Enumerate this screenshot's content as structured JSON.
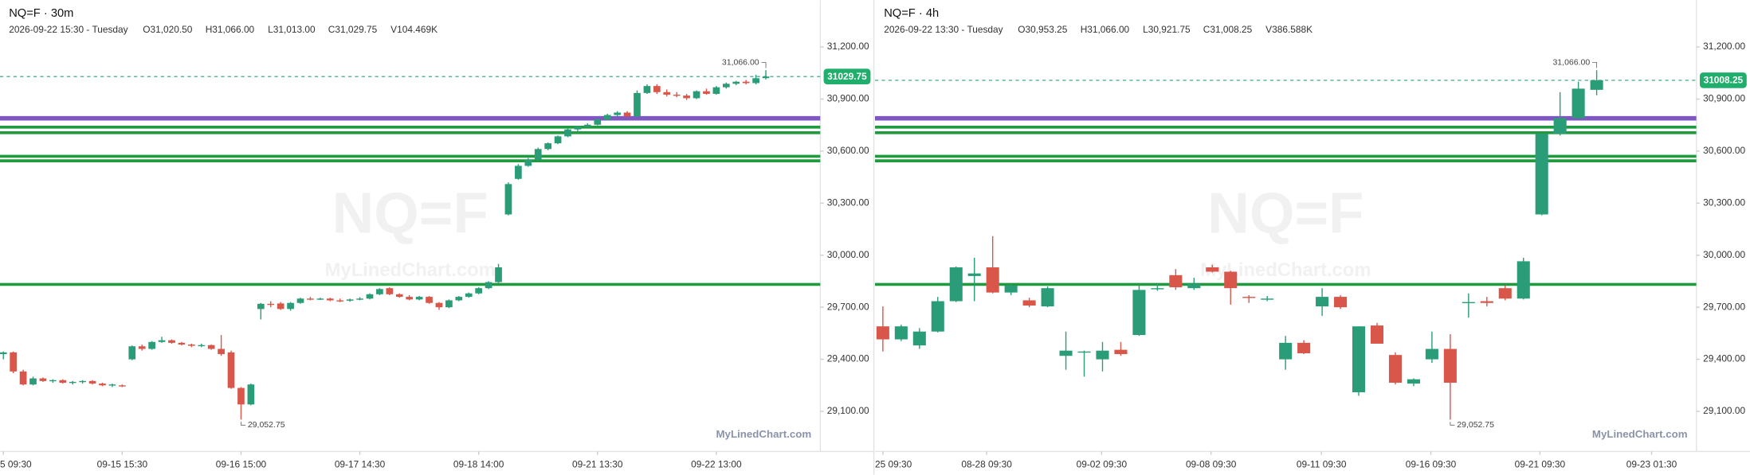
{
  "chart_data": [
    {
      "type": "candlestick",
      "title": "NQ=F · 30m",
      "info": [
        "2026-09-22 15:30 - Tuesday",
        "O31,020.50",
        "H31,066.00",
        "L31,013.00",
        "C31,029.75",
        "V104.469K"
      ],
      "watermark": "NQ=F",
      "watermark_sub": "MyLinedChart.com",
      "brand": "MyLinedChart.com",
      "up_color": "#2a9d78",
      "down_color": "#d9574a",
      "open": [
        29430,
        29440,
        29330,
        29255,
        29290,
        29275,
        29280,
        29265,
        29270,
        29275,
        29260,
        29250,
        29250,
        29400,
        29475,
        29460,
        29500,
        29510,
        29495,
        29485,
        29478,
        29482,
        29460,
        29440,
        29235,
        29140,
        29690,
        29720,
        29722,
        29690,
        29725,
        29750,
        29748,
        29750,
        29740,
        29738,
        29745,
        29750,
        29775,
        29810,
        29775,
        29760,
        29745,
        29760,
        29725,
        29700,
        29740,
        29760,
        29780,
        29810,
        29845,
        30235,
        30440,
        30515,
        30550,
        30612,
        30645,
        30685,
        30725,
        30740,
        30752,
        30782,
        30808,
        30822,
        30800,
        30935,
        30975,
        30940,
        30925,
        30920,
        30905,
        30945,
        30930,
        30968,
        30988,
        31000,
        30992,
        31020.5
      ],
      "high": [
        29445,
        29445,
        29340,
        29300,
        29295,
        29285,
        29285,
        29275,
        29280,
        29280,
        29265,
        29260,
        29255,
        29480,
        29485,
        29505,
        29530,
        29515,
        29500,
        29490,
        29490,
        29485,
        29540,
        29450,
        29240,
        29260,
        29725,
        29735,
        29730,
        29730,
        29755,
        29760,
        29755,
        29755,
        29750,
        29750,
        29758,
        29780,
        29810,
        29815,
        29780,
        29770,
        29765,
        29765,
        29730,
        29745,
        29765,
        29785,
        29815,
        29850,
        29950,
        30420,
        30525,
        30560,
        30620,
        30650,
        30690,
        30730,
        30745,
        30760,
        30790,
        30815,
        30830,
        30830,
        30950,
        30985,
        30985,
        30955,
        30940,
        30930,
        30950,
        30960,
        30975,
        30995,
        31005,
        31010,
        31040,
        31066
      ],
      "low": [
        29400,
        29320,
        29250,
        29250,
        29270,
        29265,
        29260,
        29255,
        29260,
        29255,
        29245,
        29240,
        29240,
        29395,
        29450,
        29455,
        29495,
        29490,
        29480,
        29470,
        29470,
        29455,
        29420,
        29230,
        29052.75,
        29135,
        29630,
        29700,
        29685,
        29680,
        29720,
        29740,
        29742,
        29735,
        29730,
        29732,
        29740,
        29745,
        29770,
        29770,
        29755,
        29740,
        29740,
        29720,
        29685,
        29695,
        29735,
        29755,
        29775,
        29805,
        29840,
        30230,
        30435,
        30510,
        30545,
        30605,
        30640,
        30680,
        30715,
        30735,
        30748,
        30778,
        30800,
        30795,
        30795,
        30930,
        30930,
        30915,
        30910,
        30895,
        30900,
        30925,
        30925,
        30960,
        30980,
        30985,
        30985,
        31013
      ],
      "close": [
        29440,
        29330,
        29255,
        29290,
        29275,
        29280,
        29265,
        29270,
        29275,
        29260,
        29250,
        29255,
        29248,
        29475,
        29460,
        29500,
        29510,
        29495,
        29485,
        29478,
        29482,
        29460,
        29430,
        29235,
        29140,
        29255,
        29720,
        29715,
        29690,
        29725,
        29750,
        29748,
        29750,
        29740,
        29738,
        29745,
        29750,
        29775,
        29805,
        29775,
        29760,
        29745,
        29760,
        29725,
        29700,
        29740,
        29760,
        29780,
        29810,
        29845,
        29930,
        30410,
        30515,
        30550,
        30612,
        30645,
        30685,
        30725,
        30740,
        30752,
        30782,
        30808,
        30822,
        30800,
        30935,
        30975,
        30940,
        30925,
        30920,
        30905,
        30945,
        30930,
        30968,
        30988,
        31000,
        30992,
        31020,
        31029.75
      ],
      "xlim": [
        -0.34,
        82.5
      ],
      "xticks": [
        {
          "value": 0,
          "label": "5 09:30"
        },
        {
          "value": 12,
          "label": "09-15 15:30"
        },
        {
          "value": 24,
          "label": "09-16 15:00"
        },
        {
          "value": 36,
          "label": "09-17 14:30"
        },
        {
          "value": 48,
          "label": "09-18 14:00"
        },
        {
          "value": 60,
          "label": "09-21 13:30"
        },
        {
          "value": 72,
          "label": "09-22 13:00"
        }
      ],
      "ylim": [
        28869,
        31470
      ],
      "yticks": [
        {
          "value": 31200,
          "label": "31,200.00"
        },
        {
          "value": 30900,
          "label": "30,900.00"
        },
        {
          "value": 30600,
          "label": "30,600.00"
        },
        {
          "value": 30300,
          "label": "30,300.00"
        },
        {
          "value": 30000,
          "label": "30,000.00"
        },
        {
          "value": 29700,
          "label": "29,700.00"
        },
        {
          "value": 29400,
          "label": "29,400.00"
        },
        {
          "value": 29100,
          "label": "29,100.00"
        }
      ],
      "levels": [
        {
          "value": 30789,
          "color": "#7e57c2"
        },
        {
          "value": 30738,
          "color": "#1f9a3e"
        },
        {
          "value": 30706,
          "color": "#1f9a3e"
        },
        {
          "value": 30570,
          "color": "#1f9a3e"
        },
        {
          "value": 30544,
          "color": "#1f9a3e"
        },
        {
          "value": 29832,
          "color": "#1f9a3e"
        }
      ],
      "last_price": 31029.75,
      "high_label": {
        "value": 31066,
        "label": "31,066.00"
      },
      "low_label": {
        "value": 29052.75,
        "label": "29,052.75"
      }
    },
    {
      "type": "candlestick",
      "title": "NQ=F · 4h",
      "info": [
        "2026-09-22 13:30 - Tuesday",
        "O30,953.25",
        "H31,066.00",
        "L30,921.75",
        "C31,008.25",
        "V386.588K"
      ],
      "watermark": "NQ=F",
      "watermark_sub": "MyLinedChart.com",
      "brand": "MyLinedChart.com",
      "up_color": "#2a9d78",
      "down_color": "#d9574a",
      "open": [
        29590,
        29515,
        29480,
        29560,
        29735,
        29880,
        29930,
        29785,
        29740,
        29705,
        29420,
        29440,
        29400,
        29455,
        29540,
        29805,
        29885,
        29810,
        29930,
        29905,
        29760,
        29745,
        29400,
        29495,
        29705,
        29760,
        29210,
        29595,
        29425,
        29260,
        29400,
        29460,
        29725,
        29735,
        29810,
        29750,
        30235,
        30700,
        30790,
        30953.25
      ],
      "high": [
        29705,
        29600,
        29580,
        29760,
        29935,
        29985,
        30110,
        29835,
        29755,
        29820,
        29560,
        29450,
        29500,
        29500,
        29830,
        29835,
        29920,
        29870,
        29945,
        29910,
        29770,
        29765,
        29535,
        29510,
        29810,
        29770,
        29590,
        29610,
        29440,
        29290,
        29560,
        29545,
        29780,
        29760,
        29825,
        29985,
        30700,
        30940,
        31000,
        31066
      ],
      "low": [
        29445,
        29505,
        29460,
        29555,
        29730,
        29735,
        29780,
        29770,
        29700,
        29700,
        29340,
        29300,
        29330,
        29420,
        29535,
        29795,
        29800,
        29800,
        29900,
        29715,
        29725,
        29735,
        29340,
        29430,
        29650,
        29690,
        29190,
        29490,
        29255,
        29245,
        29380,
        29052.75,
        29640,
        29705,
        29740,
        29745,
        30230,
        30690,
        30785,
        30921.75
      ],
      "close": [
        29515,
        29590,
        29560,
        29735,
        29930,
        29895,
        29785,
        29825,
        29710,
        29810,
        29450,
        29445,
        29450,
        29430,
        29800,
        29810,
        29815,
        29835,
        29905,
        29810,
        29755,
        29750,
        29495,
        29435,
        29760,
        29700,
        29590,
        29490,
        29265,
        29285,
        29460,
        29265,
        29730,
        29725,
        29750,
        29965,
        30700,
        30790,
        30960,
        31008.25
      ],
      "xlim": [
        -0.43,
        44.45
      ],
      "xticks": [
        {
          "value": 0,
          "label": "25 09:30"
        },
        {
          "value": 5.67,
          "label": "08-28 09:30"
        },
        {
          "value": 11.95,
          "label": "09-02 09:30"
        },
        {
          "value": 17.93,
          "label": "09-08 09:30"
        },
        {
          "value": 23.96,
          "label": "09-11 09:30"
        },
        {
          "value": 29.94,
          "label": "09-16 09:30"
        },
        {
          "value": 35.9,
          "label": "09-21 09:30"
        },
        {
          "value": 42,
          "label": "09-23 01:30"
        }
      ],
      "ylim": [
        28869,
        31470
      ],
      "yticks": [
        {
          "value": 31200,
          "label": "31,200.00"
        },
        {
          "value": 30900,
          "label": "30,900.00"
        },
        {
          "value": 30600,
          "label": "30,600.00"
        },
        {
          "value": 30300,
          "label": "30,300.00"
        },
        {
          "value": 30000,
          "label": "30,000.00"
        },
        {
          "value": 29700,
          "label": "29,700.00"
        },
        {
          "value": 29400,
          "label": "29,400.00"
        },
        {
          "value": 29100,
          "label": "29,100.00"
        }
      ],
      "levels": [
        {
          "value": 30789,
          "color": "#7e57c2"
        },
        {
          "value": 30738,
          "color": "#1f9a3e"
        },
        {
          "value": 30706,
          "color": "#1f9a3e"
        },
        {
          "value": 30570,
          "color": "#1f9a3e"
        },
        {
          "value": 30544,
          "color": "#1f9a3e"
        },
        {
          "value": 29832,
          "color": "#1f9a3e"
        }
      ],
      "last_price": 31008.25,
      "high_label": {
        "value": 31066,
        "label": "31,066.00"
      },
      "low_label": {
        "value": 29052.75,
        "label": "29,052.75"
      }
    }
  ]
}
